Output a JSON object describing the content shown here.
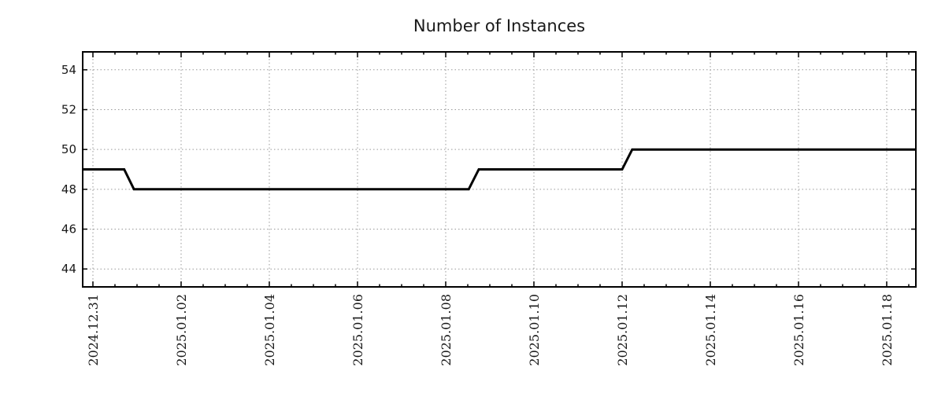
{
  "chart_data": {
    "type": "line",
    "subtype": "step-time-series",
    "title": "Number of Instances",
    "xlabel": "",
    "ylabel": "",
    "legend": "none",
    "grid": "dotted-major-both-axes",
    "background_color": "#ffffff",
    "line_color": "#000000",
    "line_width": 3,
    "grid_color": "#999999",
    "border_color": "#000000",
    "text_color": "#1a1a1a",
    "ylim": [
      43.1,
      54.9
    ],
    "yticks": [
      {
        "v": 44,
        "label": "44"
      },
      {
        "v": 46,
        "label": "46"
      },
      {
        "v": 48,
        "label": "48"
      },
      {
        "v": 50,
        "label": "50"
      },
      {
        "v": 52,
        "label": "52"
      },
      {
        "v": 54,
        "label": "54"
      }
    ],
    "xlim": [
      "2024-12-30T18:26:00",
      "2025-01-18T15:52:00"
    ],
    "xticks": [
      {
        "t": "2024-12-31T00:00:00",
        "label": "2024.12.31"
      },
      {
        "t": "2025-01-02T00:00:00",
        "label": "2025.01.02"
      },
      {
        "t": "2025-01-04T00:00:00",
        "label": "2025.01.04"
      },
      {
        "t": "2025-01-06T00:00:00",
        "label": "2025.01.06"
      },
      {
        "t": "2025-01-08T00:00:00",
        "label": "2025.01.08"
      },
      {
        "t": "2025-01-10T00:00:00",
        "label": "2025.01.10"
      },
      {
        "t": "2025-01-12T00:00:00",
        "label": "2025.01.12"
      },
      {
        "t": "2025-01-14T00:00:00",
        "label": "2025.01.14"
      },
      {
        "t": "2025-01-16T00:00:00",
        "label": "2025.01.16"
      },
      {
        "t": "2025-01-18T00:00:00",
        "label": "2025.01.18"
      }
    ],
    "minor_tick_hours": 12,
    "series": [
      {
        "name": "instances",
        "color": "#000000",
        "points": [
          [
            "2024-12-30T18:26:00",
            49
          ],
          [
            "2024-12-31T17:00:00",
            49
          ],
          [
            "2024-12-31T22:20:00",
            48
          ],
          [
            "2025-01-08T12:30:00",
            48
          ],
          [
            "2025-01-08T18:00:00",
            49
          ],
          [
            "2025-01-12T00:00:00",
            49
          ],
          [
            "2025-01-12T05:30:00",
            50
          ],
          [
            "2025-01-18T15:52:00",
            50
          ]
        ]
      }
    ]
  }
}
